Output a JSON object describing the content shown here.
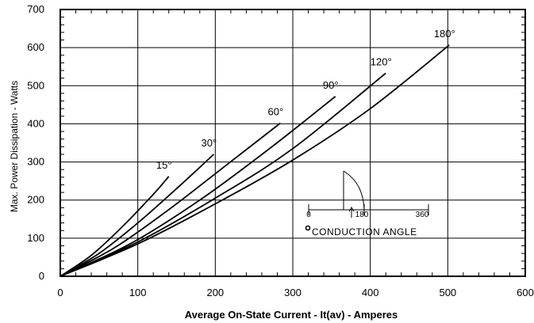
{
  "chart_data": {
    "type": "line",
    "title": "",
    "xlabel": "Average On-State Current - It(av) - Amperes",
    "ylabel": "Max. Power Dissipation - Watts",
    "xlim": [
      0,
      600
    ],
    "ylim": [
      0,
      700
    ],
    "x_ticks": [
      "0",
      "100",
      "200",
      "300",
      "400",
      "500",
      "600"
    ],
    "y_ticks": [
      "0",
      "100",
      "200",
      "300",
      "400",
      "500",
      "600",
      "700"
    ],
    "grid": true,
    "series": [
      {
        "name": "15°",
        "x": [
          0,
          40,
          80,
          120,
          140
        ],
        "y": [
          0,
          55,
          130,
          215,
          262
        ]
      },
      {
        "name": "30°",
        "x": [
          0,
          50,
          100,
          150,
          198
        ],
        "y": [
          0,
          60,
          140,
          230,
          320
        ]
      },
      {
        "name": "60°",
        "x": [
          0,
          70,
          140,
          210,
          284
        ],
        "y": [
          0,
          75,
          175,
          285,
          402
        ]
      },
      {
        "name": "90°",
        "x": [
          0,
          90,
          180,
          270,
          355
        ],
        "y": [
          0,
          85,
          200,
          335,
          472
        ]
      },
      {
        "name": "120°",
        "x": [
          0,
          100,
          200,
          300,
          420
        ],
        "y": [
          0,
          90,
          205,
          335,
          533
        ]
      },
      {
        "name": "180°",
        "x": [
          0,
          100,
          200,
          300,
          400,
          502
        ],
        "y": [
          0,
          85,
          190,
          305,
          440,
          607
        ]
      }
    ],
    "inset": {
      "tick_labels": [
        "0",
        "180",
        "360"
      ],
      "caption": "CONDUCTION ANGLE"
    }
  }
}
